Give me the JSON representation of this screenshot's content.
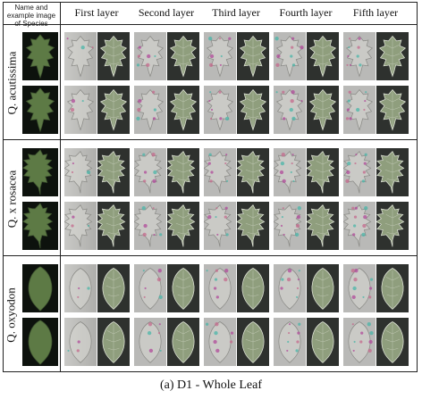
{
  "figure": {
    "corner_label": "Name and example image of Species",
    "layer_headers": [
      "First layer",
      "Second layer",
      "Third layer",
      "Fourth layer",
      "Fifth layer"
    ],
    "species": [
      {
        "name": "Q. acutissima",
        "leaf_shape": "lobed"
      },
      {
        "name": "Q. x rosacea",
        "leaf_shape": "spiky"
      },
      {
        "name": "Q. oxyodon",
        "leaf_shape": "oval"
      }
    ],
    "rows_per_species": 2,
    "caption": "(a) D1 - Whole Leaf"
  },
  "colors": {
    "leaf": "#5d7a45",
    "leaf_light": "#9aab86",
    "magenta_artifact": "#b04a9a",
    "cyan_artifact": "#49b6a8",
    "background_dark": "#0d120d"
  }
}
